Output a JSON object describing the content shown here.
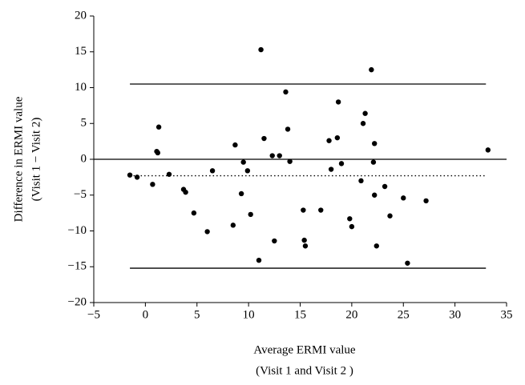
{
  "chart_data": {
    "type": "scatter",
    "x_label": "Average ERMI value",
    "x_label2": "(Visit 1 and Visit 2 )",
    "y_label": "Difference in ERMI value",
    "y_label2": "(Visit 1 − Visit 2)",
    "color": "#000000",
    "xlim": [
      -5,
      35
    ],
    "xticks": [
      {
        "value": -5,
        "label": "−5"
      },
      0,
      5,
      10,
      15,
      20,
      25,
      30,
      35
    ],
    "ylim": [
      -20,
      20
    ],
    "yticks": [
      {
        "value": -20,
        "label": "−20"
      },
      {
        "value": -15,
        "label": "−15"
      },
      {
        "value": -10,
        "label": "−10"
      },
      {
        "value": -5,
        "label": "−5"
      },
      0,
      5,
      10,
      15,
      20
    ],
    "hlines": [
      {
        "y": 0,
        "style": "solid"
      },
      {
        "y": 10.5,
        "style": "solid",
        "x": [
          -1.5,
          33
        ]
      },
      {
        "y": -2.3,
        "style": "dotted",
        "x": [
          -1.5,
          33
        ]
      },
      {
        "y": -15.2,
        "style": "solid",
        "x": [
          -1.5,
          33
        ]
      }
    ],
    "x": [
      -1.5,
      -0.8,
      0.7,
      1.3,
      1.1,
      1.2,
      2.3,
      3.7,
      3.9,
      4.7,
      6.0,
      6.5,
      8.5,
      8.7,
      9.3,
      9.5,
      9.9,
      10.2,
      11.2,
      11.0,
      11.5,
      12.3,
      12.5,
      13.0,
      13.6,
      13.8,
      14.0,
      15.3,
      15.4,
      15.5,
      17.0,
      17.8,
      18.0,
      18.6,
      18.7,
      19.0,
      19.8,
      20.0,
      20.9,
      21.1,
      21.3,
      21.9,
      22.1,
      22.2,
      22.2,
      22.4,
      23.2,
      23.7,
      25.0,
      25.4,
      27.2,
      33.2
    ],
    "y": [
      -2.2,
      -2.5,
      -3.5,
      4.5,
      1.1,
      0.9,
      -2.1,
      -4.2,
      -4.6,
      -7.5,
      -10.1,
      -1.6,
      -9.2,
      2.0,
      -4.8,
      -0.4,
      -1.6,
      -7.7,
      15.3,
      -14.1,
      2.9,
      0.5,
      -11.4,
      0.5,
      9.4,
      4.2,
      -0.3,
      -7.1,
      -11.3,
      -12.1,
      -7.1,
      2.6,
      -1.4,
      3.0,
      8.0,
      -0.6,
      -8.3,
      -9.4,
      -3.0,
      5.0,
      6.4,
      12.5,
      -0.4,
      2.2,
      -5.0,
      -12.1,
      -3.8,
      -7.9,
      -5.4,
      -14.5,
      -5.8,
      1.3
    ]
  }
}
